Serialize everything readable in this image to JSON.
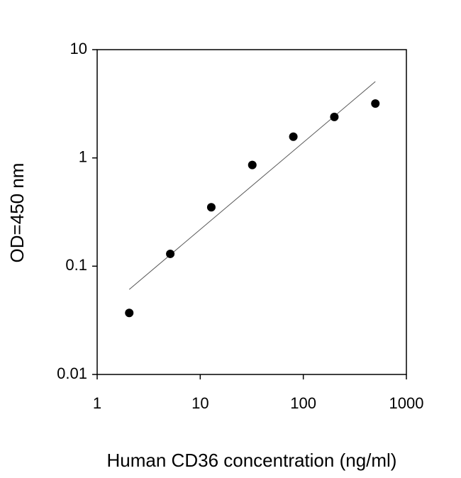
{
  "chart_data": {
    "type": "scatter",
    "x_label": "Human CD36 concentration (ng/ml)",
    "y_label": "OD=450 nm",
    "x": [
      2.048,
      5.12,
      12.8,
      32,
      80,
      200,
      500
    ],
    "values": [
      0.037,
      0.13,
      0.35,
      0.86,
      1.57,
      2.39,
      3.18
    ],
    "color": "#000000",
    "fit_line": {
      "x": [
        2.048,
        500
      ],
      "y": [
        0.061,
        5.07
      ],
      "color": "#555555"
    },
    "xlim": [
      1,
      1000
    ],
    "ylim": [
      0.01,
      10
    ],
    "xticks": [
      1,
      10,
      100,
      1000
    ],
    "yticks": [
      0.01,
      0.1,
      1,
      10
    ],
    "xscale": "log",
    "yscale": "log",
    "grid": false
  }
}
